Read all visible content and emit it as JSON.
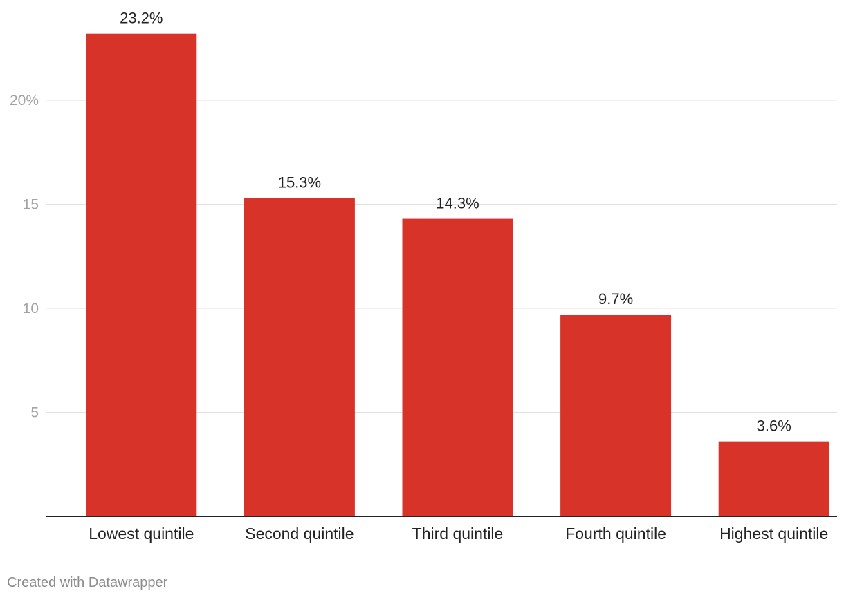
{
  "chart_data": {
    "type": "bar",
    "categories": [
      "Lowest quintile",
      "Second quintile",
      "Third quintile",
      "Fourth quintile",
      "Highest quintile"
    ],
    "values": [
      23.2,
      15.3,
      14.3,
      9.7,
      3.6
    ],
    "value_labels": [
      "23.2%",
      "15.3%",
      "14.3%",
      "9.7%",
      "3.6%"
    ],
    "y_ticks": [
      {
        "value": 5,
        "label": "5"
      },
      {
        "value": 10,
        "label": "10"
      },
      {
        "value": 15,
        "label": "15"
      },
      {
        "value": 20,
        "label": "20%"
      }
    ],
    "ylim": [
      0,
      25
    ],
    "grid": true,
    "legend": "none",
    "bar_color": "#d83329",
    "title": "",
    "xlabel": "",
    "ylabel": ""
  },
  "footer": {
    "credit": "Created with Datawrapper"
  }
}
